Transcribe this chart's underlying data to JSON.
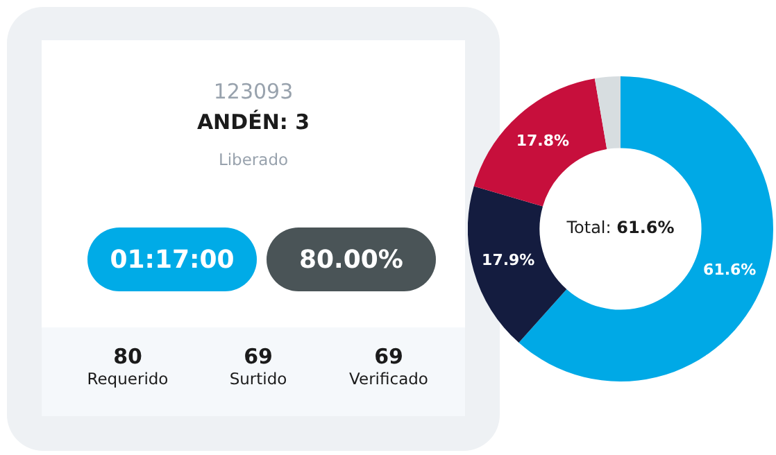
{
  "chart_data": [
    {
      "type": "other",
      "annotations": [
        "123093",
        "ANDÉN: 3",
        "Liberado",
        "01:17:00",
        "80.00%",
        "80",
        "Requerido",
        "69",
        "Surtido",
        "69",
        "Verificado"
      ]
    },
    {
      "type": "donut",
      "categories": [
        null,
        null,
        null,
        null
      ],
      "values": [
        61.6,
        17.9,
        17.8,
        2.7
      ],
      "colors": [
        "#00a9e6",
        "#141c3f",
        "#c70f3c",
        "#d7dde0"
      ],
      "value_labels": [
        "61.6%",
        "17.9%",
        "17.8%",
        null
      ],
      "annotations": [
        "Total: 61.6%"
      ],
      "legend": false
    }
  ]
}
